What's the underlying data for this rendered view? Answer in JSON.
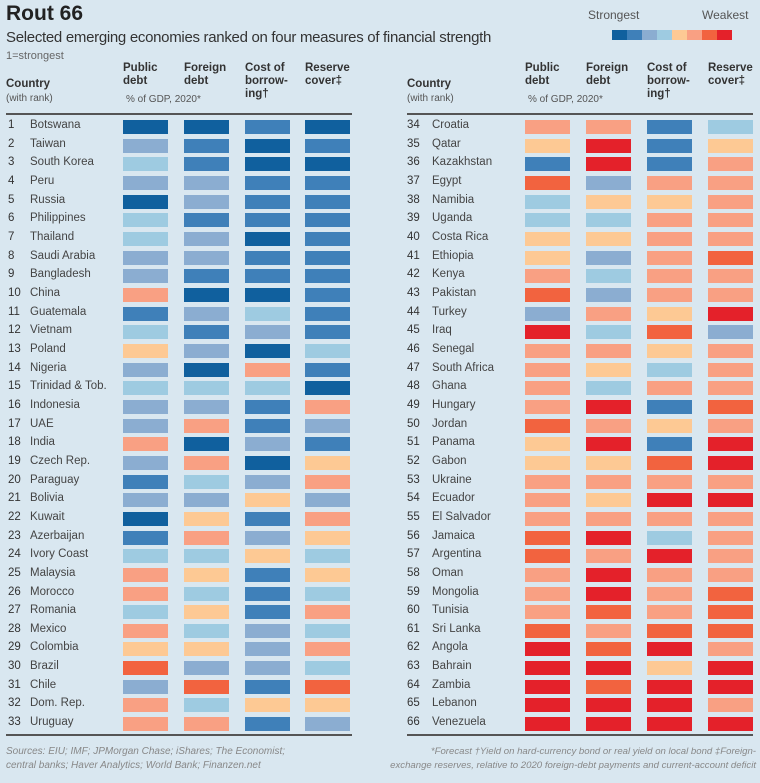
{
  "chart_data": {
    "type": "heatmap",
    "title": "Rout 66",
    "subtitle": "Selected emerging economies ranked on four measures of financial strength",
    "note": "1=strongest",
    "legend": {
      "low": "Strongest",
      "high": "Weakest",
      "placement": "top-right"
    },
    "scale_note": "cell value 1 (strongest) to 8 (weakest)",
    "colors": [
      "#10609e",
      "#3f80b9",
      "#8badd1",
      "#9ecbe1",
      "#fdc994",
      "#f9a083",
      "#f2633f",
      "#e4212a"
    ],
    "row_header": {
      "title": "Country",
      "sub": "(with rank)"
    },
    "columns": [
      {
        "l1": "Public",
        "l2": "debt",
        "l3": ""
      },
      {
        "l1": "Foreign",
        "l2": "debt",
        "l3": ""
      },
      {
        "l1": "Cost of",
        "l2": "borrow-",
        "l3": "ing†"
      },
      {
        "l1": "Reserve",
        "l2": "cover‡",
        "l3": ""
      }
    ],
    "columns_sub": "% of GDP, 2020*",
    "rows": [
      [
        "Botswana",
        [
          1,
          1,
          2,
          1
        ]
      ],
      [
        "Taiwan",
        [
          3,
          2,
          1,
          2
        ]
      ],
      [
        "South Korea",
        [
          4,
          2,
          1,
          1
        ]
      ],
      [
        "Peru",
        [
          3,
          3,
          2,
          2
        ]
      ],
      [
        "Russia",
        [
          1,
          3,
          2,
          2
        ]
      ],
      [
        "Philippines",
        [
          4,
          2,
          2,
          2
        ]
      ],
      [
        "Thailand",
        [
          4,
          3,
          1,
          2
        ]
      ],
      [
        "Saudi Arabia",
        [
          3,
          3,
          2,
          2
        ]
      ],
      [
        "Bangladesh",
        [
          3,
          2,
          2,
          2
        ]
      ],
      [
        "China",
        [
          6,
          1,
          1,
          2
        ]
      ],
      [
        "Guatemala",
        [
          2,
          3,
          4,
          2
        ]
      ],
      [
        "Vietnam",
        [
          4,
          2,
          3,
          2
        ]
      ],
      [
        "Poland",
        [
          5,
          3,
          1,
          4
        ]
      ],
      [
        "Nigeria",
        [
          3,
          1,
          6,
          2
        ]
      ],
      [
        "Trinidad & Tob.",
        [
          4,
          4,
          4,
          1
        ]
      ],
      [
        "Indonesia",
        [
          3,
          3,
          2,
          6
        ]
      ],
      [
        "UAE",
        [
          3,
          6,
          2,
          3
        ]
      ],
      [
        "India",
        [
          6,
          1,
          3,
          2
        ]
      ],
      [
        "Czech Rep.",
        [
          3,
          6,
          1,
          5
        ]
      ],
      [
        "Paraguay",
        [
          2,
          4,
          3,
          6
        ]
      ],
      [
        "Bolivia",
        [
          3,
          3,
          5,
          3
        ]
      ],
      [
        "Kuwait",
        [
          1,
          5,
          2,
          6
        ]
      ],
      [
        "Azerbaijan",
        [
          2,
          6,
          3,
          5
        ]
      ],
      [
        "Ivory Coast",
        [
          4,
          4,
          5,
          4
        ]
      ],
      [
        "Malaysia",
        [
          6,
          5,
          2,
          5
        ]
      ],
      [
        "Morocco",
        [
          6,
          4,
          2,
          4
        ]
      ],
      [
        "Romania",
        [
          4,
          5,
          2,
          6
        ]
      ],
      [
        "Mexico",
        [
          6,
          4,
          3,
          4
        ]
      ],
      [
        "Colombia",
        [
          5,
          5,
          3,
          6
        ]
      ],
      [
        "Brazil",
        [
          7,
          3,
          3,
          4
        ]
      ],
      [
        "Chile",
        [
          3,
          7,
          2,
          7
        ]
      ],
      [
        "Dom. Rep.",
        [
          6,
          4,
          5,
          5
        ]
      ],
      [
        "Uruguay",
        [
          6,
          6,
          2,
          3
        ]
      ],
      [
        "Croatia",
        [
          6,
          6,
          2,
          4
        ]
      ],
      [
        "Qatar",
        [
          5,
          8,
          2,
          5
        ]
      ],
      [
        "Kazakhstan",
        [
          2,
          8,
          2,
          6
        ]
      ],
      [
        "Egypt",
        [
          7,
          3,
          6,
          6
        ]
      ],
      [
        "Namibia",
        [
          4,
          5,
          5,
          6
        ]
      ],
      [
        "Uganda",
        [
          4,
          4,
          6,
          6
        ]
      ],
      [
        "Costa Rica",
        [
          5,
          5,
          6,
          6
        ]
      ],
      [
        "Ethiopia",
        [
          5,
          3,
          6,
          7
        ]
      ],
      [
        "Kenya",
        [
          6,
          4,
          6,
          6
        ]
      ],
      [
        "Pakistan",
        [
          7,
          3,
          6,
          6
        ]
      ],
      [
        "Turkey",
        [
          3,
          6,
          5,
          8
        ]
      ],
      [
        "Iraq",
        [
          8,
          4,
          7,
          3
        ]
      ],
      [
        "Senegal",
        [
          6,
          6,
          5,
          6
        ]
      ],
      [
        "South Africa",
        [
          6,
          5,
          4,
          6
        ]
      ],
      [
        "Ghana",
        [
          6,
          4,
          6,
          6
        ]
      ],
      [
        "Hungary",
        [
          6,
          8,
          2,
          7
        ]
      ],
      [
        "Jordan",
        [
          7,
          6,
          5,
          6
        ]
      ],
      [
        "Panama",
        [
          5,
          8,
          2,
          8
        ]
      ],
      [
        "Gabon",
        [
          5,
          5,
          7,
          8
        ]
      ],
      [
        "Ukraine",
        [
          6,
          6,
          6,
          6
        ]
      ],
      [
        "Ecuador",
        [
          6,
          5,
          8,
          8
        ]
      ],
      [
        "El Salvador",
        [
          6,
          6,
          6,
          6
        ]
      ],
      [
        "Jamaica",
        [
          7,
          8,
          4,
          6
        ]
      ],
      [
        "Argentina",
        [
          7,
          6,
          8,
          6
        ]
      ],
      [
        "Oman",
        [
          6,
          8,
          6,
          6
        ]
      ],
      [
        "Mongolia",
        [
          6,
          8,
          6,
          7
        ]
      ],
      [
        "Tunisia",
        [
          6,
          7,
          6,
          7
        ]
      ],
      [
        "Sri Lanka",
        [
          7,
          6,
          7,
          7
        ]
      ],
      [
        "Angola",
        [
          8,
          7,
          8,
          6
        ]
      ],
      [
        "Bahrain",
        [
          8,
          8,
          5,
          8
        ]
      ],
      [
        "Zambia",
        [
          8,
          7,
          8,
          8
        ]
      ],
      [
        "Lebanon",
        [
          8,
          8,
          8,
          6
        ]
      ],
      [
        "Venezuela",
        [
          8,
          8,
          8,
          8
        ]
      ]
    ]
  },
  "footer": {
    "sources1": "Sources: EIU; IMF; JPMorgan Chase; iShares; The Economist;",
    "sources2": "central banks; Haver Analytics; World Bank; Finanzen.net",
    "fn1a": "*Forecast   †Yield on hard-currency bond or real yield on local bond   ‡Foreign-",
    "fn1b": "exchange reserves, relative to 2020 foreign-debt payments and current-account deficit"
  }
}
